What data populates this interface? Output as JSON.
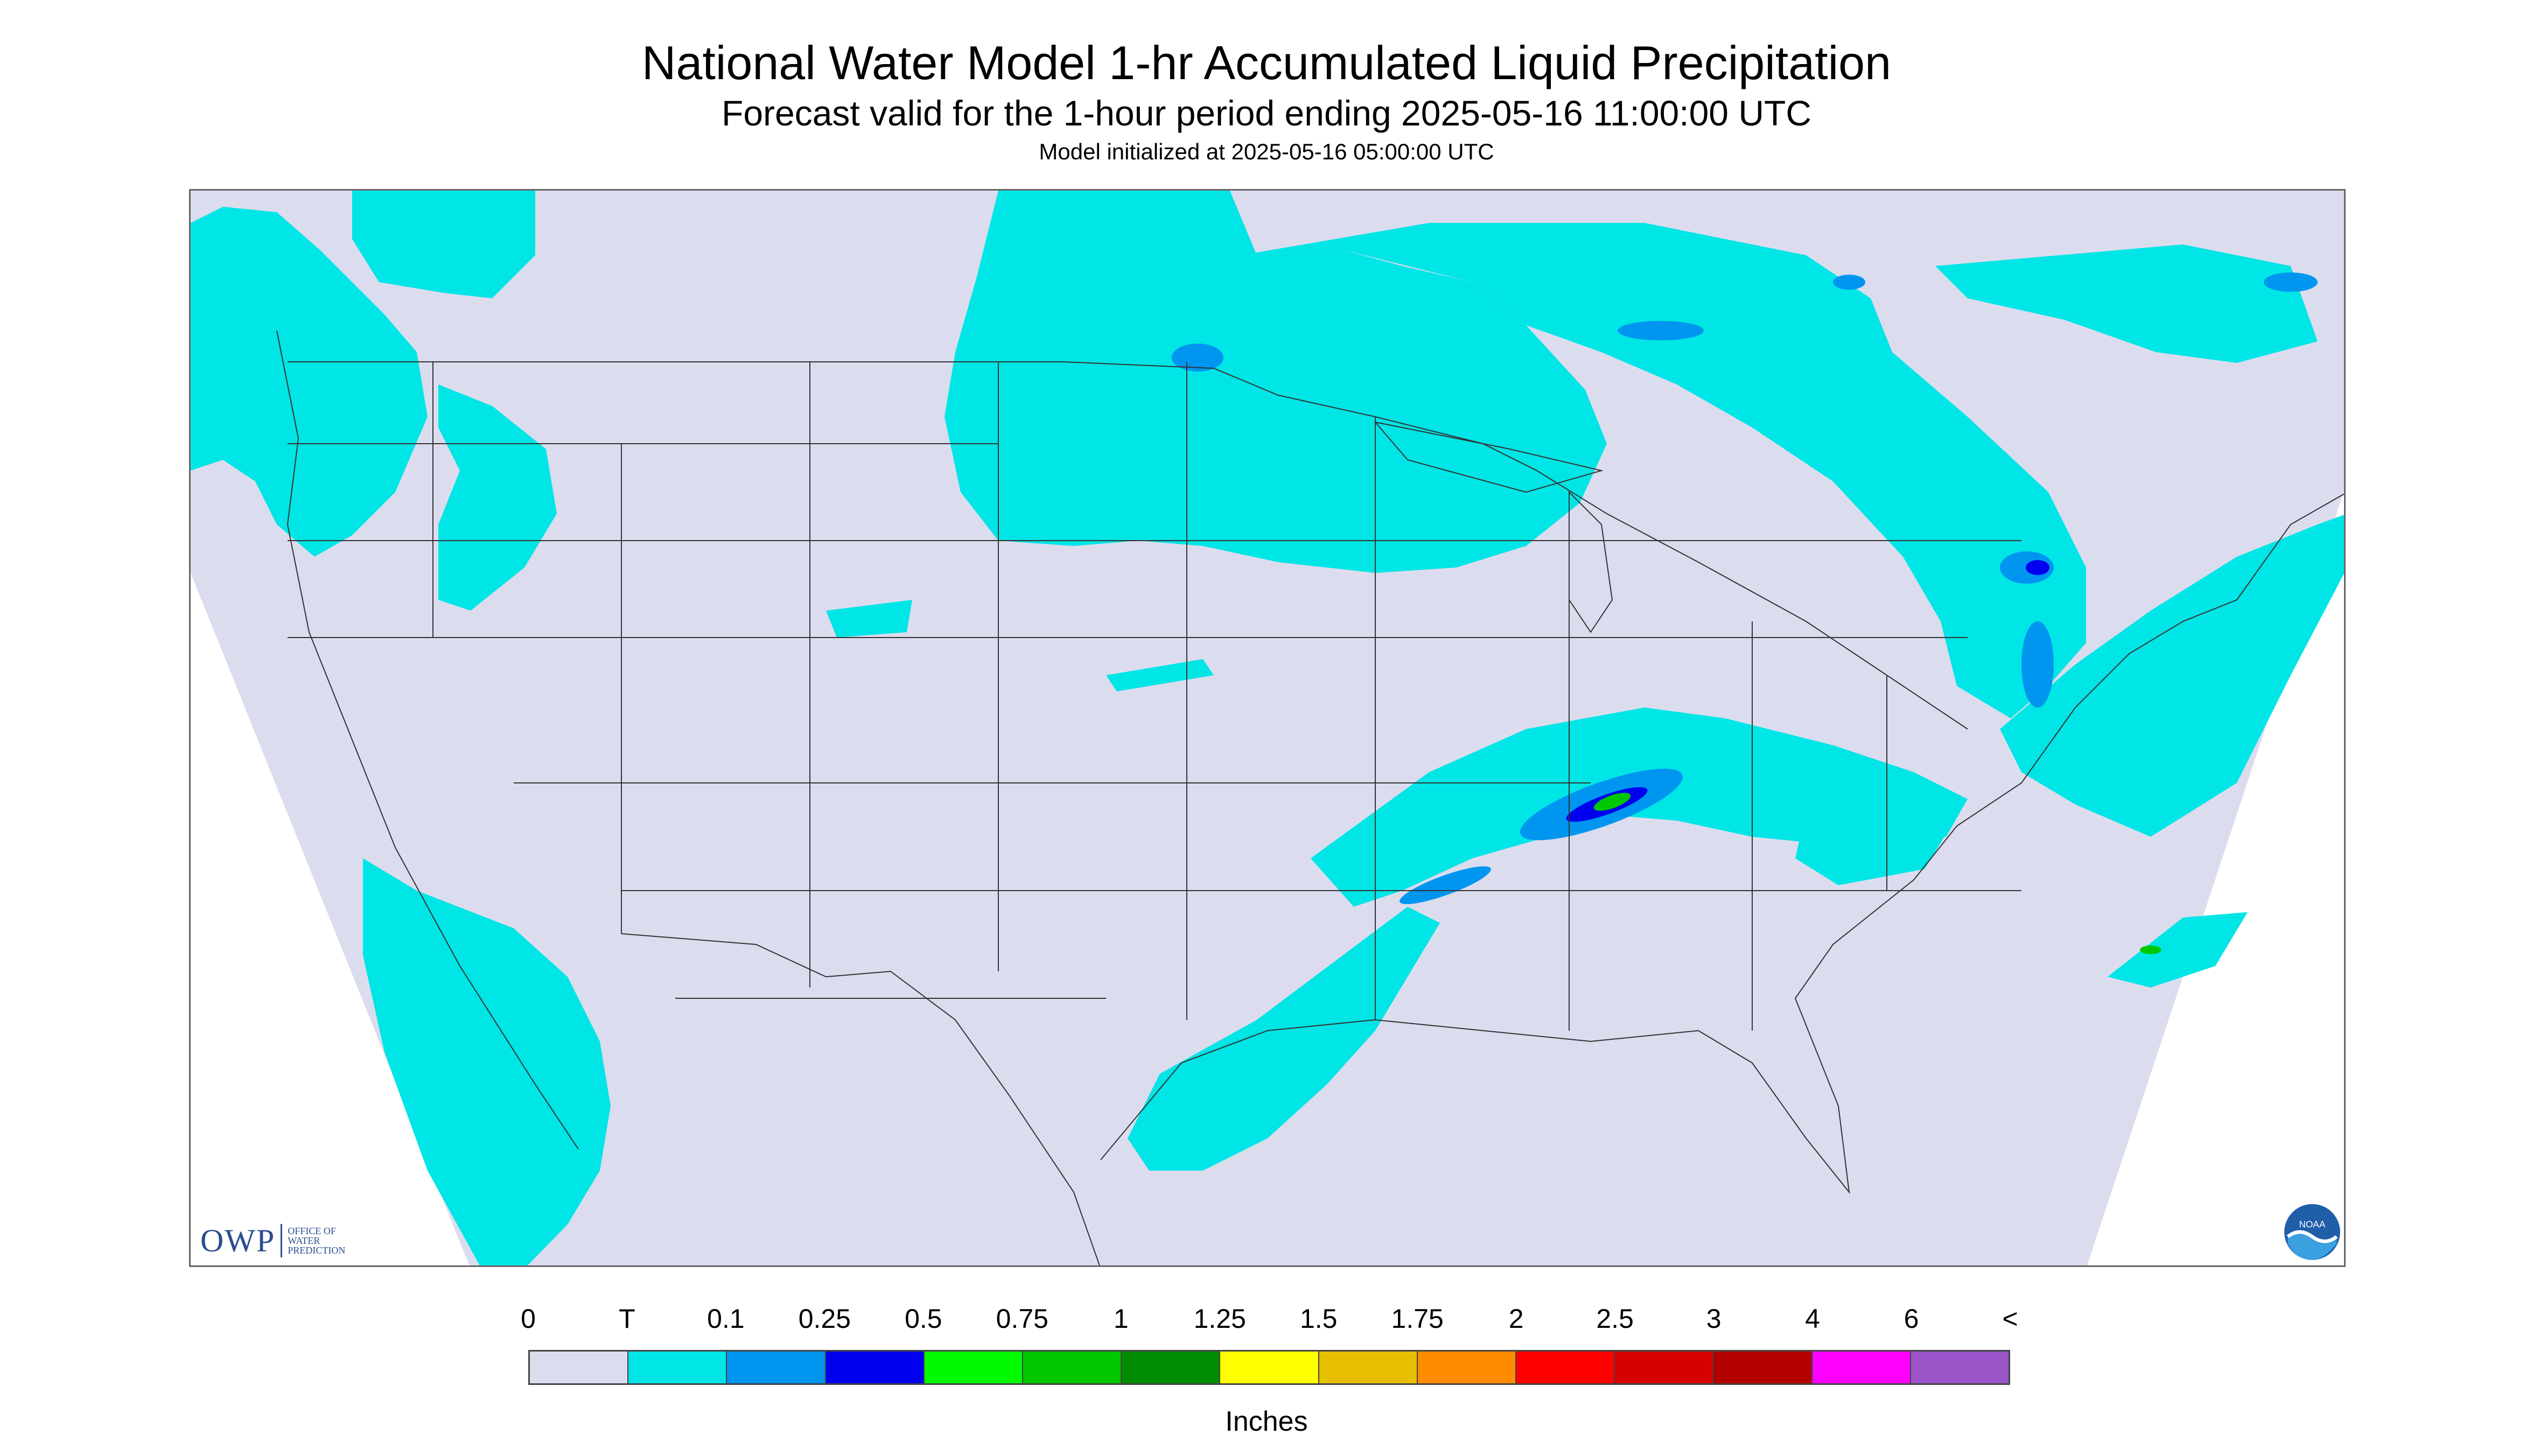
{
  "title": "National Water Model 1-hr Accumulated Liquid Precipitation",
  "subtitle": "Forecast valid for the 1-hour period ending 2025-05-16 11:00:00 UTC",
  "init": "Model initialized at 2025-05-16 05:00:00 UTC",
  "logos": {
    "owp_mark": "OWP",
    "owp_text": "OFFICE OF\nWATER\nPREDICTION",
    "noaa_text": "NOAA"
  },
  "legend": {
    "ticks": [
      "0",
      "T",
      "0.1",
      "0.25",
      "0.5",
      "0.75",
      "1",
      "1.25",
      "1.5",
      "1.75",
      "2",
      "2.5",
      "3",
      "4",
      "6",
      "<"
    ],
    "colors": [
      "#dcdcef",
      "#00e5e5",
      "#0096f0",
      "#0000ef",
      "#00fb00",
      "#00c800",
      "#008c00",
      "#ffff00",
      "#e6c000",
      "#ff8c00",
      "#ff0000",
      "#d60000",
      "#b40000",
      "#ff00ff",
      "#9a55c9"
    ],
    "units": "Inches"
  },
  "colors": {
    "no_data": "#ffffff",
    "domain_background": "#dcdcef",
    "trace": "#00e5e5",
    "boundaries": "#333333"
  }
}
